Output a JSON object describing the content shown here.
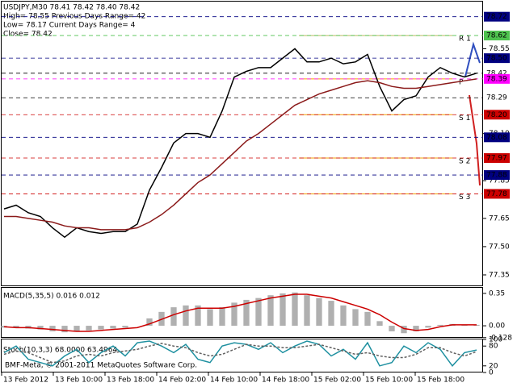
{
  "header": {
    "line1": "USDJPY,M30  78.41 78.42 78.40 78.42",
    "line2": "High= 78.55   Previous Days Range= 42",
    "line3": "Low= 78.17   Current Days Range= 4",
    "line4": "Close= 78.42"
  },
  "chart_data": [
    {
      "type": "line",
      "ylim": [
        77.29,
        78.8
      ],
      "yticks": [
        78.55,
        {
          "value": 78.1,
          "label": "78.10"
        },
        77.85,
        77.65,
        {
          "value": 77.5,
          "label": "77.50"
        },
        77.35
      ],
      "price_tags": [
        {
          "value": 78.72,
          "label": "78.72",
          "color": "#000080"
        },
        {
          "value": 78.62,
          "label": "78.62",
          "color": "#4ec24e"
        },
        {
          "value": 78.5,
          "label": "78.50",
          "color": "#000080"
        },
        {
          "value": 78.42,
          "label": "78.42",
          "color": "#ffffff"
        },
        {
          "value": 78.39,
          "label": "78.39",
          "color": "#ff00ff"
        },
        {
          "value": 78.29,
          "label": "78.29",
          "color": "#ffffff"
        },
        {
          "value": 78.2,
          "label": "78.20",
          "color": "#cc0000"
        },
        {
          "value": 78.08,
          "label": "78.08",
          "color": "#000080"
        },
        {
          "value": 77.97,
          "label": "77.97",
          "color": "#cc0000"
        },
        {
          "value": 77.88,
          "label": "77.88",
          "color": "#000080"
        },
        {
          "value": 77.78,
          "label": "77.78",
          "color": "#cc0000"
        }
      ],
      "pivots": [
        {
          "name": "R 1",
          "value": 78.62,
          "color": "#b8b860"
        },
        {
          "name": "P",
          "value": 78.39,
          "color": "#f0a000"
        },
        {
          "name": "S 1",
          "value": 78.2,
          "color": "#f0a000"
        },
        {
          "name": "S 2",
          "value": 77.97,
          "color": "#f0a000"
        },
        {
          "name": "S 3",
          "value": 77.78,
          "color": "#f0a000"
        }
      ],
      "series": [
        {
          "color": "#000000",
          "values": [
            77.7,
            77.72,
            77.68,
            77.66,
            77.6,
            77.55,
            77.6,
            77.58,
            77.57,
            77.58,
            77.58,
            77.62,
            77.8,
            77.92,
            78.05,
            78.1,
            78.1,
            78.08,
            78.22,
            78.4,
            78.43,
            78.45,
            78.45,
            78.5,
            78.55,
            78.48,
            78.48,
            78.5,
            78.47,
            78.48,
            78.52,
            78.35,
            78.22,
            78.28,
            78.3,
            78.4,
            78.45,
            78.42,
            78.4,
            78.42
          ]
        },
        {
          "color": "#8b1a1a",
          "values": [
            77.66,
            77.66,
            77.65,
            77.64,
            77.63,
            77.61,
            77.6,
            77.6,
            77.59,
            77.59,
            77.59,
            77.6,
            77.63,
            77.67,
            77.72,
            77.78,
            77.84,
            77.88,
            77.94,
            78.0,
            78.06,
            78.1,
            78.15,
            78.2,
            78.25,
            78.28,
            78.31,
            78.33,
            78.35,
            78.37,
            78.38,
            78.37,
            78.35,
            78.34,
            78.34,
            78.35,
            78.36,
            78.37,
            78.38,
            78.39
          ]
        }
      ]
    },
    {
      "type": "macd",
      "title": "MACD(5,35,5) 0.016 0.012",
      "ylim": [
        -0.13,
        0.41
      ],
      "yticks": [
        0.35,
        {
          "value": 0,
          "label": "0.00"
        },
        -0.128
      ],
      "series": [
        {
          "color": "#b0b0b0",
          "values": [
            -0.02,
            -0.02,
            -0.03,
            -0.04,
            -0.06,
            -0.07,
            -0.06,
            -0.05,
            -0.04,
            -0.03,
            -0.02,
            0.0,
            0.08,
            0.15,
            0.2,
            0.22,
            0.22,
            0.18,
            0.2,
            0.25,
            0.28,
            0.3,
            0.33,
            0.35,
            0.36,
            0.33,
            0.3,
            0.27,
            0.22,
            0.18,
            0.15,
            0.05,
            -0.06,
            -0.08,
            -0.06,
            -0.02,
            0.01,
            0.02,
            0.01,
            0.01
          ]
        },
        {
          "color": "#cc0000",
          "values": [
            -0.01,
            -0.02,
            -0.02,
            -0.03,
            -0.04,
            -0.05,
            -0.06,
            -0.06,
            -0.05,
            -0.04,
            -0.03,
            -0.02,
            0.02,
            0.07,
            0.12,
            0.16,
            0.19,
            0.19,
            0.19,
            0.21,
            0.24,
            0.27,
            0.3,
            0.32,
            0.34,
            0.34,
            0.32,
            0.3,
            0.26,
            0.22,
            0.18,
            0.12,
            0.04,
            -0.03,
            -0.05,
            -0.04,
            -0.01,
            0.01,
            0.01,
            0.01
          ]
        }
      ]
    },
    {
      "type": "stoch",
      "title": "Stoch(10,3,3) 68.0000 63.4964",
      "ylim": [
        0,
        100
      ],
      "yticks": [
        100,
        80,
        20,
        0
      ],
      "series": [
        {
          "color": "#1e90a0",
          "values": [
            60,
            80,
            40,
            30,
            20,
            50,
            70,
            30,
            60,
            80,
            50,
            90,
            95,
            80,
            60,
            85,
            40,
            30,
            80,
            90,
            85,
            70,
            90,
            60,
            80,
            95,
            85,
            50,
            70,
            40,
            90,
            20,
            30,
            80,
            60,
            90,
            70,
            20,
            60,
            68
          ]
        },
        {
          "color": "#606060",
          "values": [
            55,
            65,
            60,
            45,
            30,
            35,
            50,
            55,
            50,
            60,
            65,
            70,
            80,
            88,
            80,
            75,
            60,
            50,
            55,
            70,
            85,
            80,
            80,
            75,
            75,
            80,
            85,
            75,
            65,
            55,
            60,
            50,
            45,
            45,
            55,
            75,
            75,
            60,
            50,
            63
          ]
        }
      ]
    }
  ],
  "x_labels": [
    "13 Feb 2012",
    "13 Feb 10:00",
    "13 Feb 18:00",
    "14 Feb 02:00",
    "14 Feb 10:00",
    "14 Feb 18:00",
    "15 Feb 02:00",
    "15 Feb 10:00",
    "15 Feb 18:00"
  ],
  "footer": "BMF-Meta, © 2001-2011 MetaQuotes Software Corp."
}
